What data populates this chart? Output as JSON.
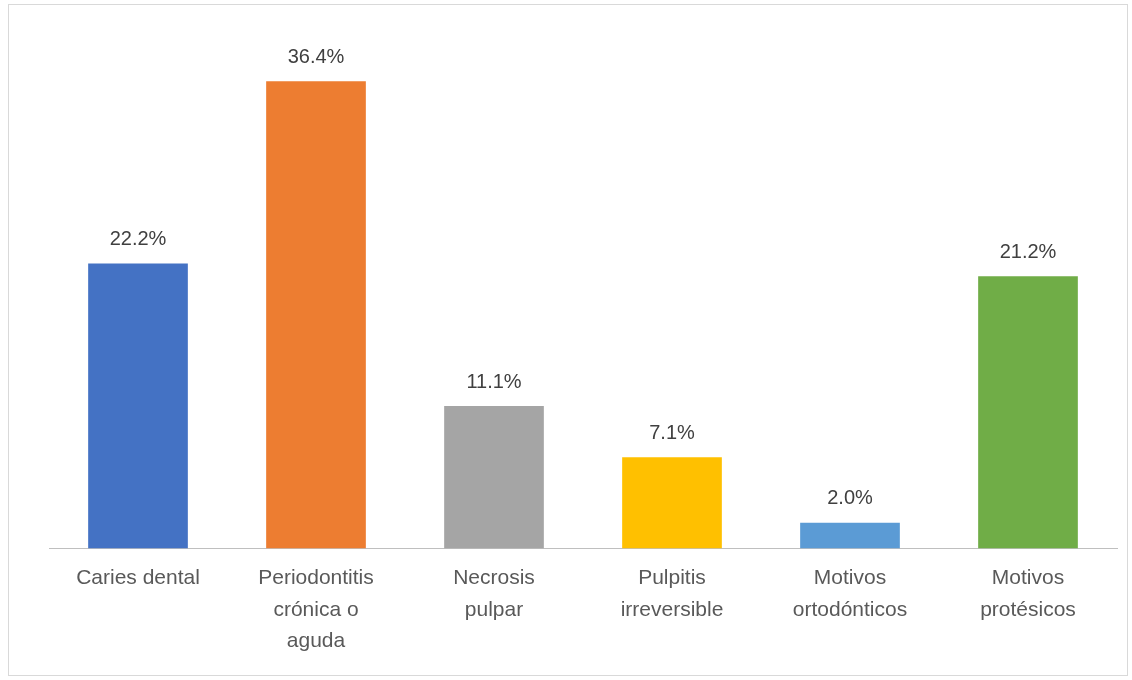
{
  "chart_data": {
    "type": "bar",
    "categories": [
      "Caries dental",
      "Periodontitis crónica o aguda",
      "Necrosis pulpar",
      "Pulpitis irreversible",
      "Motivos ortodónticos",
      "Motivos protésicos"
    ],
    "values": [
      22.2,
      36.4,
      11.1,
      7.1,
      2.0,
      21.2
    ],
    "value_labels": [
      "22.2%",
      "36.4%",
      "11.1%",
      "7.1%",
      "2.0%",
      "21.2%"
    ],
    "colors": [
      "#4472c4",
      "#ed7d31",
      "#a5a5a5",
      "#ffc000",
      "#5b9bd5",
      "#70ad47"
    ],
    "grid": false,
    "legend": false
  }
}
